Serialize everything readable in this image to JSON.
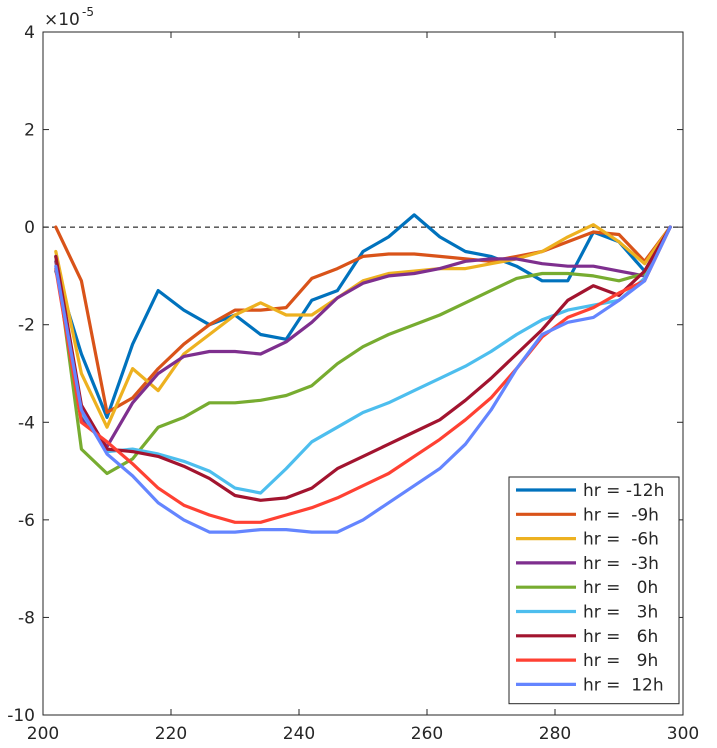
{
  "chart_data": {
    "type": "line",
    "title": "",
    "xlabel": "",
    "ylabel": "",
    "y_multiplier": "×10",
    "y_exponent": "-5",
    "xlim": [
      200,
      300
    ],
    "ylim": [
      -10,
      4
    ],
    "xticks": [
      200,
      220,
      240,
      260,
      280,
      300
    ],
    "yticks": [
      -10,
      -8,
      -6,
      -4,
      -2,
      0,
      2,
      4
    ],
    "zero_line": true,
    "grid": false,
    "legend_position": "lower-right",
    "series": [
      {
        "name": "hr = -12h",
        "color": "#0072BD",
        "x": [
          202,
          206,
          210,
          214,
          218,
          222,
          226,
          230,
          234,
          238,
          242,
          246,
          250,
          254,
          258,
          262,
          266,
          270,
          274,
          278,
          282,
          286,
          290,
          294,
          298
        ],
        "y": [
          -0.9,
          -2.6,
          -3.9,
          -2.4,
          -1.3,
          -1.7,
          -2.0,
          -1.8,
          -2.2,
          -2.3,
          -1.5,
          -1.3,
          -0.5,
          -0.2,
          0.25,
          -0.2,
          -0.5,
          -0.6,
          -0.8,
          -1.1,
          -1.1,
          -0.1,
          -0.3,
          -0.9,
          0.0
        ]
      },
      {
        "name": "hr =  -9h",
        "color": "#D95319",
        "x": [
          202,
          206,
          210,
          214,
          218,
          222,
          226,
          230,
          234,
          238,
          242,
          246,
          250,
          254,
          258,
          262,
          266,
          270,
          274,
          278,
          282,
          286,
          290,
          294,
          298
        ],
        "y": [
          0.0,
          -1.1,
          -3.8,
          -3.5,
          -2.9,
          -2.4,
          -2.0,
          -1.7,
          -1.7,
          -1.65,
          -1.05,
          -0.85,
          -0.6,
          -0.55,
          -0.55,
          -0.6,
          -0.65,
          -0.7,
          -0.6,
          -0.5,
          -0.3,
          -0.1,
          -0.15,
          -0.7,
          0.0
        ]
      },
      {
        "name": "hr =  -6h",
        "color": "#EDB120",
        "x": [
          202,
          206,
          210,
          214,
          218,
          222,
          226,
          230,
          234,
          238,
          242,
          246,
          250,
          254,
          258,
          262,
          266,
          270,
          274,
          278,
          282,
          286,
          290,
          294,
          298
        ],
        "y": [
          -0.5,
          -3.0,
          -4.1,
          -2.9,
          -3.35,
          -2.6,
          -2.2,
          -1.8,
          -1.55,
          -1.8,
          -1.8,
          -1.45,
          -1.1,
          -0.95,
          -0.9,
          -0.85,
          -0.85,
          -0.75,
          -0.65,
          -0.5,
          -0.2,
          0.05,
          -0.3,
          -0.75,
          0.0
        ]
      },
      {
        "name": "hr =  -3h",
        "color": "#7E2F8E",
        "x": [
          202,
          206,
          210,
          214,
          218,
          222,
          226,
          230,
          234,
          238,
          242,
          246,
          250,
          254,
          258,
          262,
          266,
          270,
          274,
          278,
          282,
          286,
          290,
          294,
          298
        ],
        "y": [
          -0.7,
          -3.9,
          -4.5,
          -3.6,
          -3.0,
          -2.65,
          -2.55,
          -2.55,
          -2.6,
          -2.35,
          -1.95,
          -1.45,
          -1.15,
          -1.0,
          -0.95,
          -0.85,
          -0.7,
          -0.65,
          -0.65,
          -0.75,
          -0.8,
          -0.8,
          -0.9,
          -1.0,
          0.0
        ]
      },
      {
        "name": "hr =   0h",
        "color": "#77AC30",
        "x": [
          202,
          206,
          210,
          214,
          218,
          222,
          226,
          230,
          234,
          238,
          242,
          246,
          250,
          254,
          258,
          262,
          266,
          270,
          274,
          278,
          282,
          286,
          290,
          294,
          298
        ],
        "y": [
          -0.6,
          -4.55,
          -5.05,
          -4.75,
          -4.1,
          -3.9,
          -3.6,
          -3.6,
          -3.55,
          -3.45,
          -3.25,
          -2.8,
          -2.45,
          -2.2,
          -2.0,
          -1.8,
          -1.55,
          -1.3,
          -1.05,
          -0.95,
          -0.95,
          -1.0,
          -1.1,
          -0.95,
          0.0
        ]
      },
      {
        "name": "hr =   3h",
        "color": "#4DBEEE",
        "x": [
          202,
          206,
          210,
          214,
          218,
          222,
          226,
          230,
          234,
          238,
          242,
          246,
          250,
          254,
          258,
          262,
          266,
          270,
          274,
          278,
          282,
          286,
          290,
          294,
          298
        ],
        "y": [
          -0.6,
          -3.8,
          -4.6,
          -4.55,
          -4.65,
          -4.8,
          -5.0,
          -5.35,
          -5.45,
          -4.95,
          -4.4,
          -4.1,
          -3.8,
          -3.6,
          -3.35,
          -3.1,
          -2.85,
          -2.55,
          -2.2,
          -1.9,
          -1.7,
          -1.6,
          -1.5,
          -1.05,
          0.0
        ]
      },
      {
        "name": "hr =   6h",
        "color": "#A2142F",
        "x": [
          202,
          206,
          210,
          214,
          218,
          222,
          226,
          230,
          234,
          238,
          242,
          246,
          250,
          254,
          258,
          262,
          266,
          270,
          274,
          278,
          282,
          286,
          290,
          294,
          298
        ],
        "y": [
          -0.6,
          -3.65,
          -4.55,
          -4.6,
          -4.7,
          -4.9,
          -5.15,
          -5.5,
          -5.6,
          -5.55,
          -5.35,
          -4.95,
          -4.7,
          -4.45,
          -4.2,
          -3.95,
          -3.55,
          -3.1,
          -2.6,
          -2.1,
          -1.5,
          -1.2,
          -1.4,
          -0.9,
          0.0
        ]
      },
      {
        "name": "hr =   9h",
        "color": "#FF4133",
        "x": [
          202,
          206,
          210,
          214,
          218,
          222,
          226,
          230,
          234,
          238,
          242,
          246,
          250,
          254,
          258,
          262,
          266,
          270,
          274,
          278,
          282,
          286,
          290,
          294,
          298
        ],
        "y": [
          -0.85,
          -4.0,
          -4.4,
          -4.85,
          -5.35,
          -5.7,
          -5.9,
          -6.05,
          -6.05,
          -5.9,
          -5.75,
          -5.55,
          -5.3,
          -5.05,
          -4.7,
          -4.35,
          -3.95,
          -3.5,
          -2.9,
          -2.25,
          -1.85,
          -1.65,
          -1.35,
          -1.1,
          0.0
        ]
      },
      {
        "name": "hr =  12h",
        "color": "#6485FF",
        "x": [
          202,
          206,
          210,
          214,
          218,
          222,
          226,
          230,
          234,
          238,
          242,
          246,
          250,
          254,
          258,
          262,
          266,
          270,
          274,
          278,
          282,
          286,
          290,
          294,
          298
        ],
        "y": [
          -0.8,
          -3.75,
          -4.65,
          -5.1,
          -5.65,
          -6.0,
          -6.25,
          -6.25,
          -6.2,
          -6.2,
          -6.25,
          -6.25,
          -6.0,
          -5.65,
          -5.3,
          -4.95,
          -4.45,
          -3.75,
          -2.9,
          -2.2,
          -1.95,
          -1.85,
          -1.5,
          -1.1,
          0.0
        ]
      }
    ]
  }
}
